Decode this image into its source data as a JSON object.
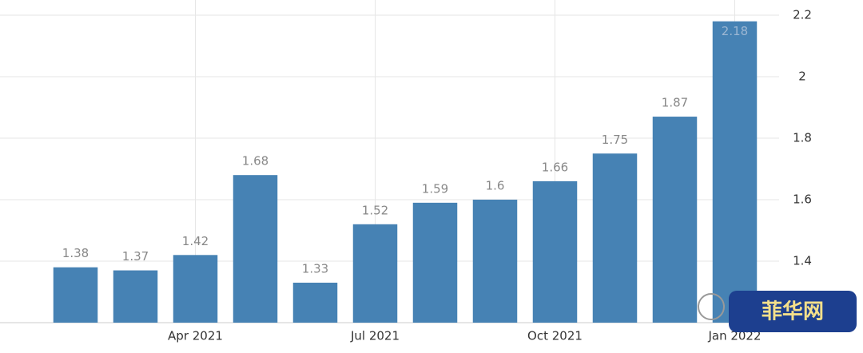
{
  "chart_data": {
    "type": "bar",
    "categories": [
      null,
      null,
      "Apr 2021",
      null,
      null,
      "Jul 2021",
      null,
      null,
      "Oct 2021",
      null,
      null,
      "Jan 2022"
    ],
    "values": [
      1.38,
      1.37,
      1.42,
      1.68,
      1.33,
      1.52,
      1.59,
      1.6,
      1.66,
      1.75,
      1.87,
      2.18
    ],
    "color": "#4682b4",
    "ylim": [
      1.2,
      2.2
    ],
    "yticks": [
      1.4,
      1.6,
      1.8,
      2,
      2.2
    ],
    "grid": true,
    "y_axis_side": "right"
  },
  "watermark": "菲华网"
}
